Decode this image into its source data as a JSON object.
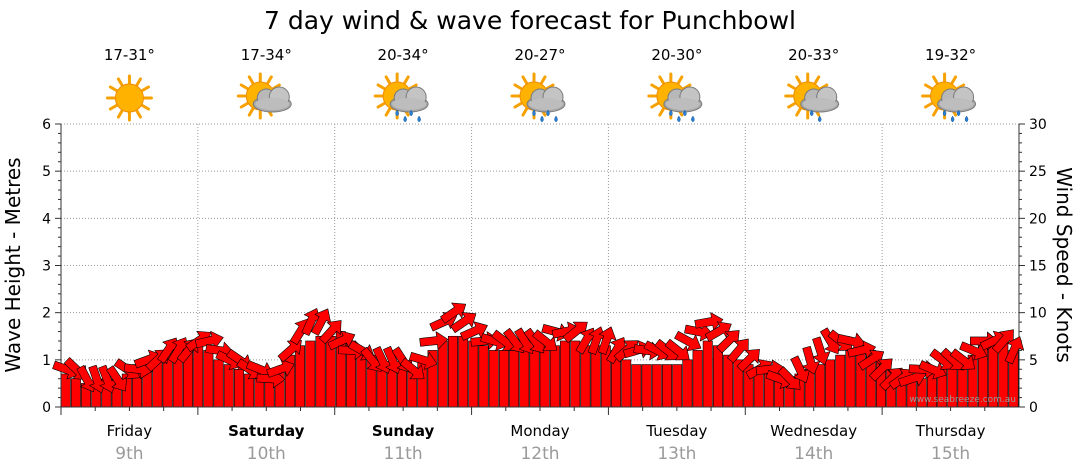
{
  "chart_data": {
    "type": "bar",
    "title": "7 day wind & wave forecast for Punchbowl",
    "y_left_label": "Wave Height - Metres",
    "y_right_label": "Wind Speed - Knots",
    "y_left_ticks": [
      "0",
      "1",
      "2",
      "3",
      "4",
      "5",
      "6"
    ],
    "y_right_ticks": [
      "0",
      "5",
      "10",
      "15",
      "20",
      "25",
      "30"
    ],
    "ylim_left": [
      0,
      6
    ],
    "ylim_right": [
      0,
      30
    ],
    "grid": true,
    "credit": "www.seabreeze.com.au",
    "days": [
      {
        "name": "Friday",
        "date": "9th",
        "temp": "17-31°",
        "weather": "sunny-icon",
        "bold": false
      },
      {
        "name": "Saturday",
        "date": "10th",
        "temp": "17-34°",
        "weather": "partly-cloudy-icon",
        "bold": true
      },
      {
        "name": "Sunday",
        "date": "11th",
        "temp": "20-34°",
        "weather": "showers-icon",
        "bold": true
      },
      {
        "name": "Monday",
        "date": "12th",
        "temp": "20-27°",
        "weather": "showers-icon",
        "bold": false
      },
      {
        "name": "Tuesday",
        "date": "13th",
        "temp": "20-30°",
        "weather": "showers-icon",
        "bold": false
      },
      {
        "name": "Wednesday",
        "date": "14th",
        "temp": "20-33°",
        "weather": "light-rain-icon",
        "bold": false
      },
      {
        "name": "Thursday",
        "date": "15th",
        "temp": "19-32°",
        "weather": "showers-icon",
        "bold": false
      }
    ],
    "series": [
      {
        "name": "Wave Height",
        "units": "m",
        "color": "#ff0000",
        "values": [
          0.7,
          0.6,
          0.5,
          0.5,
          0.6,
          0.6,
          0.7,
          0.9,
          1.0,
          1.1,
          1.2,
          1.3,
          1.4,
          1.4,
          1.2,
          1.0,
          0.9,
          0.8,
          0.7,
          0.6,
          0.6,
          0.8,
          1.1,
          1.3,
          1.4,
          1.5,
          1.5,
          1.6,
          1.4,
          1.2,
          1.1,
          1.0,
          0.9,
          0.9,
          0.8,
          1.0,
          1.2,
          1.4,
          1.5,
          1.5,
          1.4,
          1.3,
          1.2,
          1.2,
          1.2,
          1.2,
          1.2,
          1.3,
          1.3,
          1.4,
          1.4,
          1.3,
          1.3,
          1.3,
          1.2,
          1.0,
          0.9,
          0.9,
          0.9,
          0.9,
          0.9,
          1.0,
          1.2,
          1.4,
          1.3,
          1.1,
          1.0,
          0.9,
          0.8,
          0.7,
          0.6,
          0.6,
          0.7,
          0.8,
          0.9,
          1.0,
          1.1,
          1.2,
          1.3,
          1.2,
          1.0,
          0.8,
          0.7,
          0.6,
          0.6,
          0.7,
          0.8,
          0.9,
          1.0,
          1.1,
          1.3,
          1.4,
          1.4,
          1.2
        ]
      },
      {
        "name": "Wind Speed",
        "units": "knots",
        "color": "#ff0000",
        "values": [
          4,
          4,
          3,
          3,
          3,
          3,
          4,
          4,
          5,
          5,
          6,
          6,
          6,
          7,
          7,
          6,
          5,
          5,
          4,
          4,
          3,
          4,
          6,
          8,
          9,
          9,
          8,
          7,
          6,
          6,
          5,
          5,
          5,
          5,
          4,
          5,
          7,
          9,
          10,
          9,
          8,
          7,
          7,
          7,
          7,
          7,
          7,
          7,
          8,
          8,
          8,
          7,
          7,
          7,
          6,
          6,
          6,
          6,
          6,
          6,
          6,
          7,
          8,
          9,
          8,
          7,
          6,
          5,
          4,
          4,
          3,
          3,
          4,
          5,
          6,
          7,
          7,
          7,
          6,
          5,
          4,
          3,
          3,
          3,
          4,
          4,
          5,
          5,
          5,
          6,
          7,
          7,
          7,
          6
        ]
      }
    ]
  }
}
